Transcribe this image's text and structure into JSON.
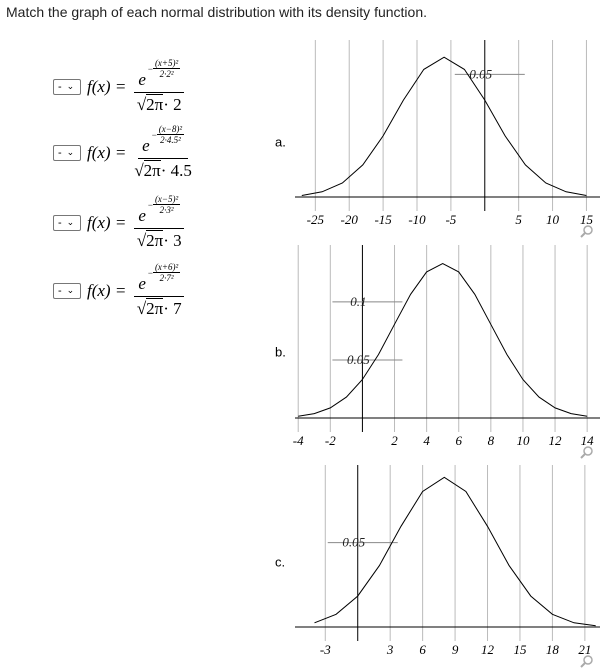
{
  "question": "Match the graph of each normal distribution with its density function.",
  "rows": [
    {
      "select": "-",
      "lhs": "f(x) =",
      "base": "e",
      "minus": "−",
      "exp_num": "(x+5)²",
      "exp_den": "2·2²",
      "radical": "√",
      "radicand": "2π",
      "factor": "· 2"
    },
    {
      "select": "-",
      "lhs": "f(x) =",
      "base": "e",
      "minus": "−",
      "exp_num": "(x−8)²",
      "exp_den": "2·4.5²",
      "radical": "√",
      "radicand": "2π",
      "factor": "· 4.5"
    },
    {
      "select": "-",
      "lhs": "f(x) =",
      "base": "e",
      "minus": "−",
      "exp_num": "(x−5)²",
      "exp_den": "2·3²",
      "radical": "√",
      "radicand": "2π",
      "factor": "· 3"
    },
    {
      "select": "-",
      "lhs": "f(x) =",
      "base": "e",
      "minus": "−",
      "exp_num": "(x+6)²",
      "exp_den": "2·7²",
      "radical": "√",
      "radicand": "2π",
      "factor": "· 7"
    }
  ],
  "chart_data": [
    {
      "type": "line",
      "label": "a.",
      "x": [
        -27,
        -24,
        -21,
        -18,
        -15,
        -12,
        -9,
        -6,
        -3,
        0,
        3,
        6,
        9,
        12,
        15
      ],
      "values": [
        0.0006,
        0.0021,
        0.0057,
        0.0131,
        0.0249,
        0.0395,
        0.052,
        0.057,
        0.052,
        0.0395,
        0.0249,
        0.0131,
        0.0057,
        0.0021,
        0.0006
      ],
      "xlim": [
        -28,
        17
      ],
      "ylim": [
        0,
        0.064
      ],
      "xticks": [
        -25,
        -20,
        -15,
        -10,
        -5,
        5,
        10,
        15
      ],
      "yticks": [
        0.05
      ],
      "color": "#000000",
      "grid": true
    },
    {
      "type": "line",
      "label": "b.",
      "x": [
        -4,
        -3,
        -2,
        -1,
        0,
        1,
        2,
        3,
        4,
        5,
        6,
        7,
        8,
        9,
        10,
        11,
        12,
        13,
        14
      ],
      "values": [
        0.0015,
        0.0038,
        0.0087,
        0.018,
        0.0332,
        0.0547,
        0.0807,
        0.1065,
        0.1258,
        0.133,
        0.1258,
        0.1065,
        0.0807,
        0.0547,
        0.0332,
        0.018,
        0.0087,
        0.0038,
        0.0015
      ],
      "xlim": [
        -4.2,
        14.8
      ],
      "ylim": [
        0,
        0.149
      ],
      "xticks": [
        -4,
        -2,
        2,
        4,
        6,
        8,
        10,
        12,
        14
      ],
      "yticks": [
        0.05,
        0.1
      ],
      "color": "#000000",
      "grid": true
    },
    {
      "type": "line",
      "label": "c.",
      "x": [
        -4,
        -2,
        0,
        2,
        4,
        6,
        8,
        10,
        12,
        14,
        16,
        18,
        20,
        22
      ],
      "values": [
        0.0025,
        0.0075,
        0.0183,
        0.0364,
        0.0597,
        0.0803,
        0.0887,
        0.0803,
        0.0597,
        0.0364,
        0.0183,
        0.0075,
        0.0025,
        0.0007
      ],
      "xlim": [
        -5.8,
        22.4
      ],
      "ylim": [
        0,
        0.096
      ],
      "xticks": [
        -3,
        3,
        6,
        9,
        12,
        15,
        18,
        21
      ],
      "yticks": [
        0.05
      ],
      "color": "#000000",
      "grid": true
    }
  ]
}
